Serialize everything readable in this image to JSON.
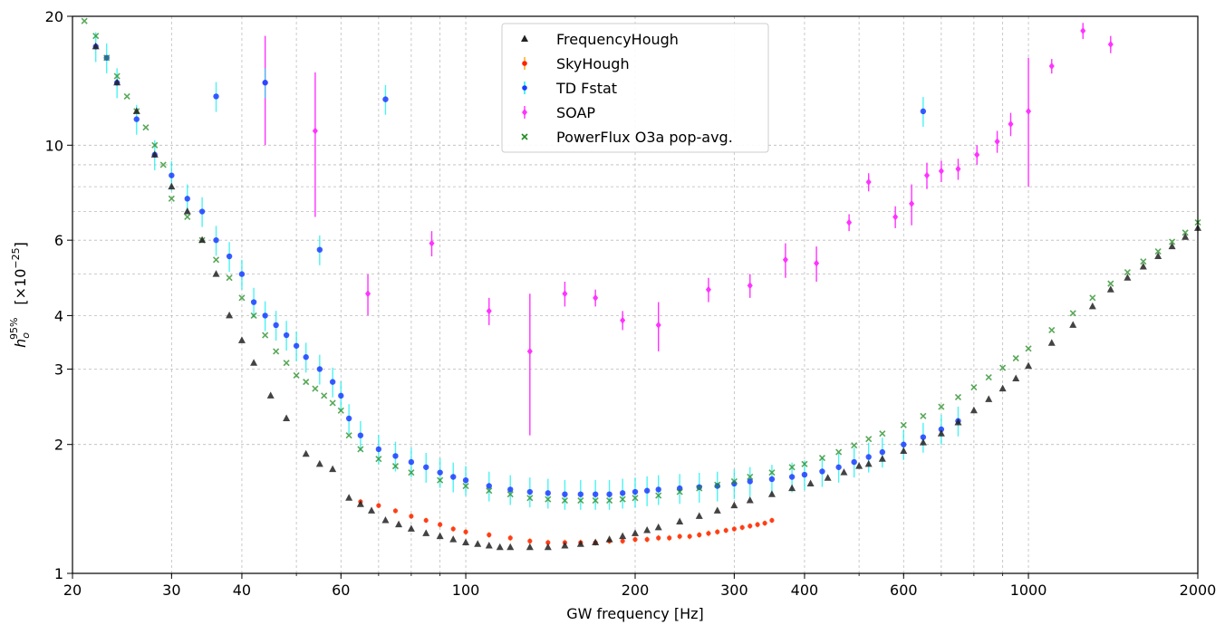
{
  "chart_data": {
    "type": "scatter",
    "title": "",
    "xlabel": "GW frequency [Hz]",
    "ylabel": {
      "main": "h",
      "sub": "o",
      "sup": "95%",
      "unit": "[×10",
      "exp": "−25",
      "close": "]"
    },
    "xscale": "log",
    "yscale": "log",
    "xlim": [
      20,
      2000
    ],
    "ylim": [
      1,
      20
    ],
    "grid": true,
    "legend_position": "top-center",
    "x_tick_labels": [
      "20",
      "30",
      "40",
      "60",
      "100",
      "200",
      "300",
      "400",
      "600",
      "1000",
      "2000"
    ],
    "x_tick_values": [
      20,
      30,
      40,
      60,
      100,
      200,
      300,
      400,
      600,
      1000,
      2000
    ],
    "y_tick_labels": [
      "1",
      "2",
      "3",
      "4",
      "6",
      "10",
      "20"
    ],
    "y_tick_values": [
      1,
      2,
      3,
      4,
      6,
      10,
      20
    ],
    "series": [
      {
        "name": "FrequencyHough",
        "marker": "triangle",
        "color": "#222222",
        "x": [
          22,
          24,
          26,
          28,
          30,
          32,
          34,
          36,
          38,
          40,
          42,
          45,
          48,
          52,
          55,
          58,
          62,
          65,
          68,
          72,
          76,
          80,
          85,
          90,
          95,
          100,
          105,
          110,
          115,
          120,
          130,
          140,
          150,
          160,
          170,
          180,
          190,
          200,
          210,
          220,
          240,
          260,
          280,
          300,
          320,
          350,
          380,
          410,
          440,
          470,
          500,
          520,
          550,
          600,
          650,
          700,
          750,
          800,
          850,
          900,
          950,
          1000,
          1100,
          1200,
          1300,
          1400,
          1500,
          1600,
          1700,
          1800,
          1900,
          2000
        ],
        "y": [
          17,
          14,
          12,
          9.5,
          8.0,
          7.0,
          6.0,
          5.0,
          4.0,
          3.5,
          3.1,
          2.6,
          2.3,
          1.9,
          1.8,
          1.75,
          1.5,
          1.45,
          1.4,
          1.33,
          1.3,
          1.27,
          1.24,
          1.22,
          1.2,
          1.18,
          1.17,
          1.16,
          1.15,
          1.15,
          1.15,
          1.15,
          1.16,
          1.17,
          1.18,
          1.2,
          1.22,
          1.24,
          1.26,
          1.28,
          1.32,
          1.36,
          1.4,
          1.44,
          1.48,
          1.53,
          1.58,
          1.62,
          1.67,
          1.72,
          1.78,
          1.8,
          1.85,
          1.93,
          2.02,
          2.12,
          2.25,
          2.4,
          2.55,
          2.7,
          2.85,
          3.05,
          3.45,
          3.8,
          4.2,
          4.6,
          4.9,
          5.2,
          5.5,
          5.8,
          6.1,
          6.4
        ]
      },
      {
        "name": "SkyHough",
        "marker": "dot-errorbar",
        "color": "#ff2200",
        "error_color": "#ffa500",
        "x": [
          65,
          70,
          75,
          80,
          85,
          90,
          95,
          100,
          110,
          120,
          130,
          140,
          150,
          160,
          170,
          180,
          190,
          200,
          210,
          220,
          230,
          240,
          250,
          260,
          270,
          280,
          290,
          300,
          310,
          320,
          330,
          340,
          350
        ],
        "y": [
          1.47,
          1.44,
          1.4,
          1.36,
          1.33,
          1.3,
          1.27,
          1.25,
          1.23,
          1.21,
          1.19,
          1.18,
          1.18,
          1.18,
          1.18,
          1.19,
          1.19,
          1.2,
          1.2,
          1.21,
          1.21,
          1.22,
          1.22,
          1.23,
          1.24,
          1.25,
          1.26,
          1.27,
          1.28,
          1.29,
          1.3,
          1.31,
          1.33
        ]
      },
      {
        "name": "TD Fstat",
        "marker": "dot-errorbar",
        "color": "#1a3dff",
        "error_color": "#00eeee",
        "x": [
          22,
          23,
          24,
          26,
          28,
          30,
          32,
          34,
          36,
          38,
          40,
          42,
          44,
          46,
          48,
          50,
          52,
          55,
          58,
          60,
          62,
          65,
          70,
          75,
          80,
          85,
          90,
          95,
          100,
          110,
          120,
          130,
          140,
          150,
          160,
          170,
          180,
          190,
          200,
          210,
          220,
          240,
          260,
          280,
          300,
          320,
          350,
          380,
          400,
          430,
          460,
          490,
          520,
          550,
          600,
          650,
          700,
          750,
          36,
          44,
          72,
          55,
          650
        ],
        "y": [
          17,
          16,
          14,
          11.5,
          9.5,
          8.5,
          7.5,
          7.0,
          6.0,
          5.5,
          5.0,
          4.3,
          4.0,
          3.8,
          3.6,
          3.4,
          3.2,
          3.0,
          2.8,
          2.6,
          2.3,
          2.1,
          1.95,
          1.88,
          1.82,
          1.77,
          1.72,
          1.68,
          1.65,
          1.6,
          1.57,
          1.55,
          1.54,
          1.53,
          1.53,
          1.53,
          1.53,
          1.54,
          1.55,
          1.56,
          1.57,
          1.58,
          1.59,
          1.6,
          1.62,
          1.64,
          1.66,
          1.68,
          1.7,
          1.73,
          1.77,
          1.82,
          1.87,
          1.92,
          2.0,
          2.08,
          2.17,
          2.27,
          13,
          14,
          12.8,
          5.7,
          12
        ]
      },
      {
        "name": "SOAP",
        "marker": "diamond-errorbar",
        "color": "#ff33ff",
        "x": [
          44,
          54,
          67,
          87,
          110,
          130,
          150,
          170,
          190,
          220,
          270,
          320,
          370,
          420,
          480,
          520,
          580,
          620,
          660,
          700,
          750,
          810,
          880,
          930,
          1000,
          1100,
          1250,
          1400
        ],
        "y": [
          14,
          10.8,
          4.5,
          5.9,
          4.1,
          3.3,
          4.5,
          4.4,
          3.9,
          3.8,
          4.6,
          4.7,
          5.4,
          5.3,
          6.6,
          8.2,
          6.8,
          7.3,
          8.5,
          8.7,
          8.8,
          9.5,
          10.2,
          11.2,
          12,
          15.3,
          18.5,
          17.2
        ],
        "err": [
          4,
          4,
          0.5,
          0.4,
          0.3,
          1.2,
          0.3,
          0.2,
          0.2,
          0.5,
          0.3,
          0.3,
          0.5,
          0.5,
          0.3,
          0.4,
          0.4,
          0.8,
          0.6,
          0.5,
          0.5,
          0.5,
          0.6,
          0.7,
          4,
          0.6,
          0.8,
          0.8
        ]
      },
      {
        "name": "PowerFlux O3a pop-avg.",
        "marker": "x",
        "color": "#228b22",
        "x": [
          21,
          22,
          23,
          24,
          25,
          26,
          27,
          28,
          29,
          30,
          32,
          34,
          36,
          38,
          40,
          42,
          44,
          46,
          48,
          50,
          52,
          54,
          56,
          58,
          60,
          62,
          65,
          70,
          75,
          80,
          90,
          100,
          110,
          120,
          130,
          140,
          150,
          160,
          170,
          180,
          190,
          200,
          220,
          240,
          260,
          280,
          300,
          320,
          350,
          380,
          400,
          430,
          460,
          490,
          520,
          550,
          600,
          650,
          700,
          750,
          800,
          850,
          900,
          950,
          1000,
          1100,
          1200,
          1300,
          1400,
          1500,
          1600,
          1700,
          1800,
          1900,
          2000
        ],
        "y": [
          19.5,
          18,
          16,
          14.5,
          13,
          12,
          11,
          10,
          9,
          7.5,
          6.8,
          6.0,
          5.4,
          4.9,
          4.4,
          4.0,
          3.6,
          3.3,
          3.1,
          2.9,
          2.8,
          2.7,
          2.6,
          2.5,
          2.4,
          2.1,
          1.95,
          1.85,
          1.78,
          1.72,
          1.65,
          1.6,
          1.56,
          1.53,
          1.5,
          1.49,
          1.48,
          1.48,
          1.48,
          1.48,
          1.49,
          1.5,
          1.52,
          1.55,
          1.58,
          1.61,
          1.64,
          1.68,
          1.72,
          1.77,
          1.8,
          1.86,
          1.92,
          1.99,
          2.06,
          2.12,
          2.22,
          2.33,
          2.45,
          2.58,
          2.72,
          2.87,
          3.02,
          3.18,
          3.35,
          3.7,
          4.05,
          4.4,
          4.75,
          5.05,
          5.35,
          5.65,
          5.95,
          6.25,
          6.6
        ]
      }
    ]
  }
}
